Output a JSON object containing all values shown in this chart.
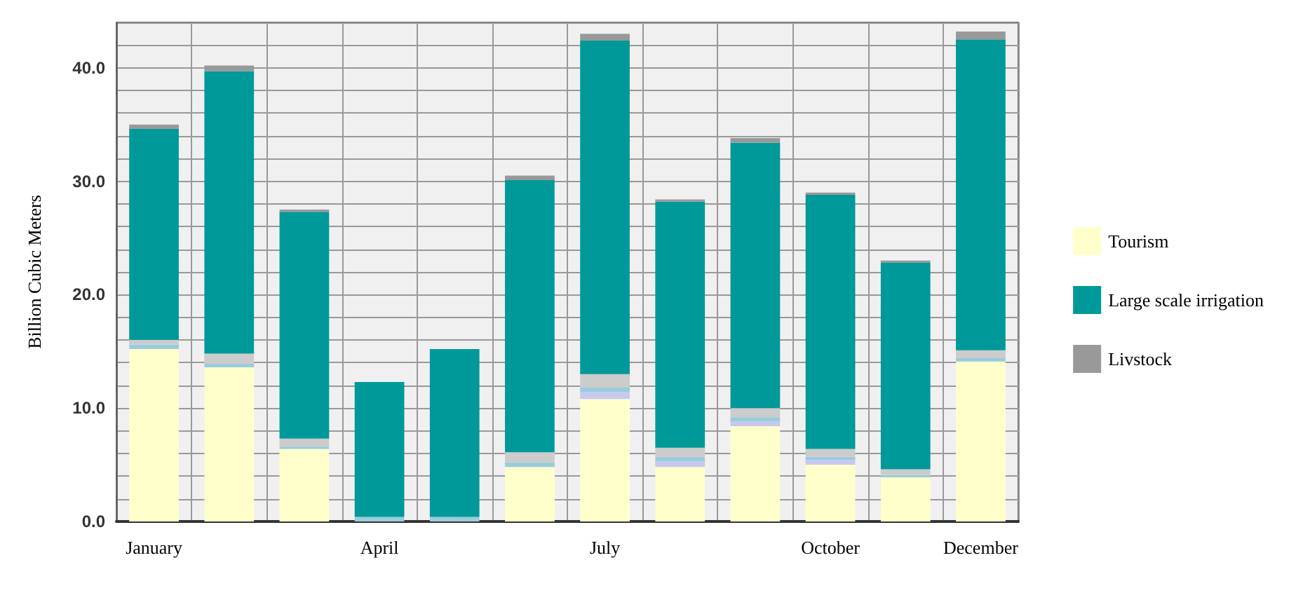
{
  "chart_data": {
    "type": "bar",
    "stacked": true,
    "ylabel": "Billion Cubic Meters",
    "categories": [
      "January",
      null,
      null,
      "April",
      null,
      null,
      "July",
      null,
      null,
      "October",
      null,
      "December"
    ],
    "series": [
      {
        "name": "Tourism",
        "color": "#ffffcc",
        "values": [
          15.2,
          13.6,
          6.4,
          0,
          0,
          4.8,
          10.8,
          4.8,
          8.4,
          5.0,
          3.9,
          14.1
        ]
      },
      {
        "color": "#c8c8f0",
        "values": [
          0,
          0,
          0,
          0,
          0,
          0,
          0.6,
          0.5,
          0.4,
          0.4,
          0,
          0
        ]
      },
      {
        "color": "#99ccdd",
        "values": [
          0.4,
          0.3,
          0.2,
          0.4,
          0.4,
          0.4,
          0.4,
          0.4,
          0.4,
          0.3,
          0.2,
          0.3
        ]
      },
      {
        "color": "#cccccc",
        "values": [
          0.4,
          0.9,
          0.7,
          0,
          0,
          0.9,
          1.2,
          0.8,
          0.8,
          0.7,
          0.5,
          0.7
        ]
      },
      {
        "name": "Large scale irrigation",
        "color": "#009999",
        "values": [
          18.6,
          24.9,
          20.0,
          11.9,
          14.8,
          24.0,
          29.4,
          21.7,
          23.4,
          22.4,
          18.2,
          27.4
        ]
      },
      {
        "name": "Livstock",
        "color": "#999999",
        "values": [
          0.4,
          0.5,
          0.2,
          0,
          0,
          0.4,
          0.6,
          0.2,
          0.4,
          0.2,
          0.2,
          0.7
        ]
      }
    ],
    "ylim": [
      0,
      44
    ],
    "yticks": [
      {
        "value": 0,
        "label": "0.0"
      },
      {
        "value": 2,
        "label": null
      },
      {
        "value": 4,
        "label": null
      },
      {
        "value": 6,
        "label": null
      },
      {
        "value": 8,
        "label": null
      },
      {
        "value": 10,
        "label": "10.0"
      },
      {
        "value": 12,
        "label": null
      },
      {
        "value": 14,
        "label": null
      },
      {
        "value": 16,
        "label": null
      },
      {
        "value": 18,
        "label": null
      },
      {
        "value": 20,
        "label": "20.0"
      },
      {
        "value": 22,
        "label": null
      },
      {
        "value": 24,
        "label": null
      },
      {
        "value": 26,
        "label": null
      },
      {
        "value": 28,
        "label": null
      },
      {
        "value": 30,
        "label": "30.0"
      },
      {
        "value": 32,
        "label": null
      },
      {
        "value": 34,
        "label": null
      },
      {
        "value": 36,
        "label": null
      },
      {
        "value": 38,
        "label": null
      },
      {
        "value": 40,
        "label": "40.0"
      },
      {
        "value": 42,
        "label": null
      },
      {
        "value": 44,
        "label": null
      }
    ],
    "grid": true,
    "legend": "right"
  }
}
